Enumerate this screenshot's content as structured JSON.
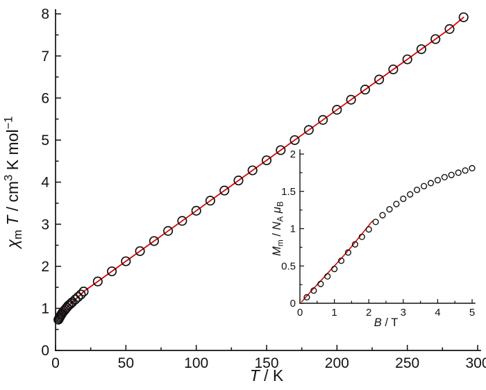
{
  "figure": {
    "background": "#ffffff",
    "axis_color": "#111111",
    "marker_color": "#111111",
    "fit_color": "#dd0000"
  },
  "chart_data": [
    {
      "id": "main",
      "type": "scatter",
      "title": "",
      "xlabel_parts": [
        {
          "t": "T",
          "italic": true
        },
        {
          "t": " / K"
        }
      ],
      "ylabel_parts": [
        {
          "t": "χ",
          "italic": true
        },
        {
          "t": "m",
          "sub": true
        },
        {
          "t": " ",
          "italic": false
        },
        {
          "t": "T",
          "italic": true
        },
        {
          "t": " / cm"
        },
        {
          "t": "3",
          "sup": true
        },
        {
          "t": " K mol"
        },
        {
          "t": "−1",
          "sup": true
        }
      ],
      "xlim": [
        0,
        300
      ],
      "ylim": [
        0,
        8
      ],
      "xticks": [
        0,
        50,
        100,
        150,
        200,
        250,
        300
      ],
      "yticks": [
        0,
        1,
        2,
        3,
        4,
        5,
        6,
        7,
        8
      ],
      "grid": false,
      "legend": "none",
      "series": [
        {
          "name": "fit-line",
          "type": "line",
          "color": "#dd0000",
          "x": [
            2,
            2.5,
            3,
            3.5,
            4,
            4.5,
            5,
            6,
            7,
            8,
            9,
            10,
            11,
            12,
            14,
            16,
            18,
            20,
            30,
            40,
            50,
            60,
            70,
            80,
            90,
            100,
            110,
            120,
            130,
            140,
            150,
            160,
            170,
            180,
            190,
            200,
            210,
            220,
            230,
            240,
            250,
            260,
            270,
            280,
            290
          ],
          "y": [
            0.73,
            0.76,
            0.79,
            0.82,
            0.85,
            0.87,
            0.9,
            0.94,
            0.98,
            1.02,
            1.06,
            1.09,
            1.12,
            1.15,
            1.21,
            1.27,
            1.33,
            1.4,
            1.64,
            1.88,
            2.12,
            2.36,
            2.6,
            2.84,
            3.08,
            3.32,
            3.56,
            3.8,
            4.04,
            4.28,
            4.52,
            4.76,
            5.0,
            5.24,
            5.48,
            5.72,
            5.96,
            6.2,
            6.44,
            6.68,
            6.92,
            7.16,
            7.4,
            7.64,
            7.92
          ]
        },
        {
          "name": "experimental-data",
          "type": "markers",
          "marker": "open-circle",
          "color": "#111111",
          "x": [
            2,
            2.5,
            3,
            3.5,
            4,
            4.5,
            5,
            6,
            7,
            8,
            9,
            10,
            11,
            12,
            14,
            16,
            18,
            20,
            30,
            40,
            50,
            60,
            70,
            80,
            90,
            100,
            110,
            120,
            130,
            140,
            150,
            160,
            170,
            180,
            190,
            200,
            210,
            220,
            230,
            240,
            250,
            260,
            270,
            280,
            290
          ],
          "y": [
            0.73,
            0.76,
            0.79,
            0.82,
            0.85,
            0.87,
            0.9,
            0.94,
            0.98,
            1.02,
            1.06,
            1.09,
            1.12,
            1.15,
            1.21,
            1.27,
            1.33,
            1.4,
            1.64,
            1.88,
            2.12,
            2.36,
            2.6,
            2.84,
            3.08,
            3.32,
            3.56,
            3.8,
            4.04,
            4.28,
            4.52,
            4.76,
            5.0,
            5.24,
            5.48,
            5.72,
            5.96,
            6.2,
            6.44,
            6.68,
            6.92,
            7.16,
            7.4,
            7.64,
            7.92
          ]
        }
      ]
    },
    {
      "id": "inset",
      "type": "scatter",
      "title": "",
      "xlabel_parts": [
        {
          "t": "B",
          "italic": true
        },
        {
          "t": " / T"
        }
      ],
      "ylabel_parts": [
        {
          "t": "M",
          "italic": true
        },
        {
          "t": "m",
          "sub": true
        },
        {
          "t": " / "
        },
        {
          "t": "N",
          "italic": true
        },
        {
          "t": "A",
          "sub": true
        },
        {
          "t": " "
        },
        {
          "t": "μ",
          "italic": true
        },
        {
          "t": "B",
          "sub": true
        }
      ],
      "xlim": [
        0,
        5
      ],
      "ylim": [
        0,
        2
      ],
      "xticks": [
        0,
        1,
        2,
        3,
        4,
        5
      ],
      "yticks": [
        0,
        0.5,
        1,
        1.5,
        2
      ],
      "grid": false,
      "legend": "none",
      "series": [
        {
          "name": "fit-line",
          "type": "line",
          "color": "#dd0000",
          "x": [
            0.05,
            0.3,
            0.6,
            0.9,
            1.2,
            1.5,
            1.8,
            2.1
          ],
          "y": [
            0.02,
            0.15,
            0.3,
            0.45,
            0.6,
            0.76,
            0.93,
            1.1
          ]
        },
        {
          "name": "experimental-data",
          "type": "markers",
          "marker": "open-circle",
          "color": "#111111",
          "x": [
            0.2,
            0.4,
            0.6,
            0.8,
            1.0,
            1.2,
            1.4,
            1.6,
            1.8,
            2.0,
            2.2,
            2.4,
            2.6,
            2.8,
            3.0,
            3.2,
            3.4,
            3.6,
            3.8,
            4.0,
            4.2,
            4.4,
            4.6,
            4.8,
            5.0
          ],
          "y": [
            0.08,
            0.17,
            0.26,
            0.36,
            0.46,
            0.57,
            0.68,
            0.79,
            0.89,
            0.99,
            1.09,
            1.18,
            1.26,
            1.33,
            1.4,
            1.46,
            1.52,
            1.57,
            1.61,
            1.65,
            1.69,
            1.72,
            1.75,
            1.78,
            1.81
          ]
        }
      ]
    }
  ]
}
